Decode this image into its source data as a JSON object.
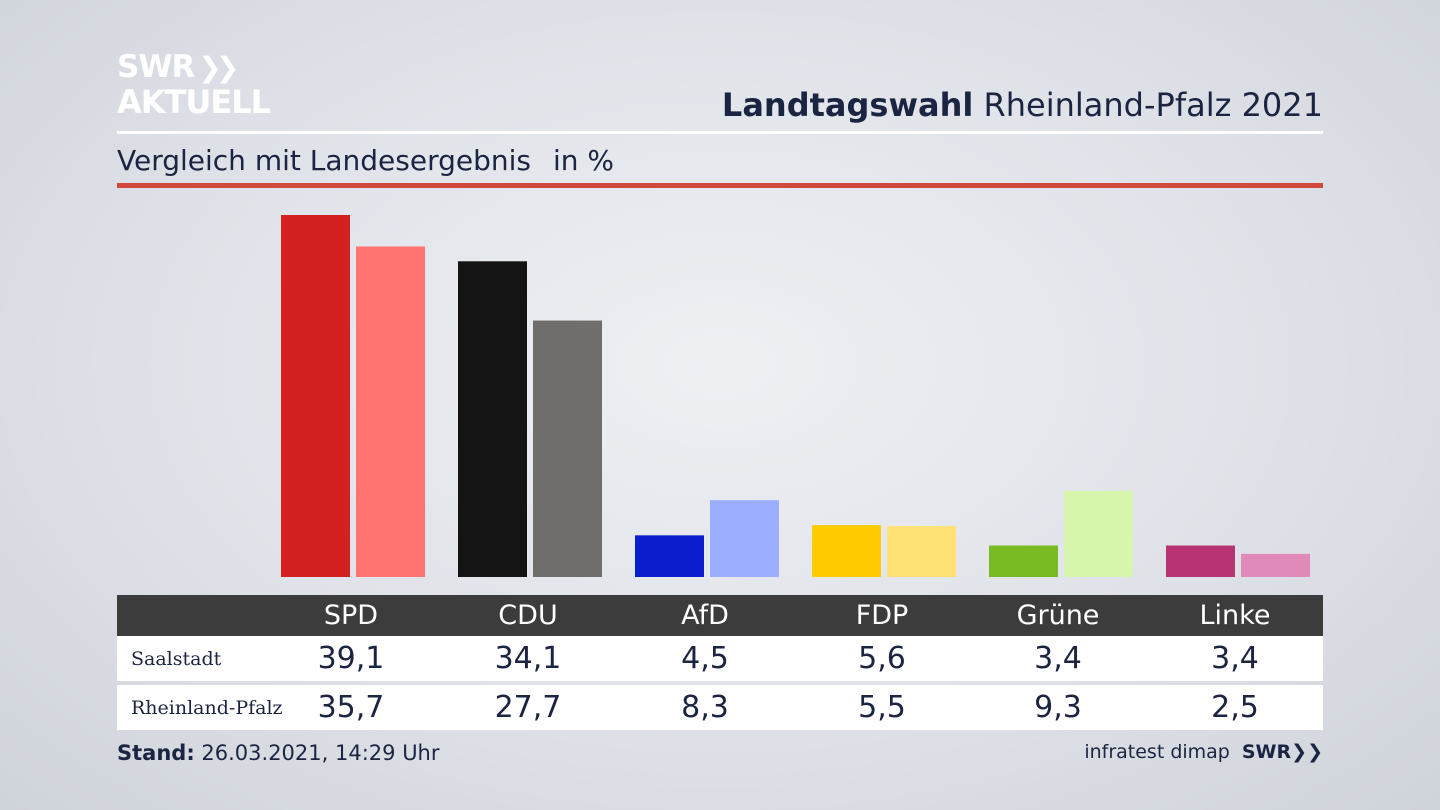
{
  "header": {
    "logo_line1": "SWR",
    "logo_line1_icon": "double-chevron",
    "logo_line2": "AKTUELL",
    "title_bold": "Landtagswahl",
    "title_rest": "Rheinland-Pfalz 2021",
    "subtitle": "Vergleich mit Landesergebnis",
    "unit": "in %"
  },
  "colors": {
    "accent_rule": "#cf4a3c",
    "table_header_bg": "#3c3c3c"
  },
  "chart_data": {
    "type": "bar",
    "categories": [
      "SPD",
      "CDU",
      "AfD",
      "FDP",
      "Grüne",
      "Linke"
    ],
    "series": [
      {
        "name": "Saalstadt",
        "values": [
          39.1,
          34.1,
          4.5,
          5.6,
          3.4,
          3.4
        ],
        "colors": [
          "#d42020",
          "#141414",
          "#0a1ecd",
          "#ffcc00",
          "#78bb22",
          "#b73372"
        ]
      },
      {
        "name": "Rheinland-Pfalz",
        "values": [
          35.7,
          27.7,
          8.3,
          5.5,
          9.3,
          2.5
        ],
        "colors": [
          "#ff7370",
          "#6f6e6c",
          "#9caeff",
          "#ffe176",
          "#d6f5ad",
          "#e08ab9"
        ]
      }
    ],
    "ylim": [
      0,
      39.1
    ],
    "grid": false,
    "legend": "table-below"
  },
  "table": {
    "headers": [
      "SPD",
      "CDU",
      "AfD",
      "FDP",
      "Grüne",
      "Linke"
    ],
    "rows": [
      {
        "label": "Saalstadt",
        "values": [
          "39,1",
          "34,1",
          "4,5",
          "5,6",
          "3,4",
          "3,4"
        ]
      },
      {
        "label": "Rheinland-Pfalz",
        "values": [
          "35,7",
          "27,7",
          "8,3",
          "5,5",
          "9,3",
          "2,5"
        ]
      }
    ]
  },
  "footer": {
    "stand_label": "Stand:",
    "stand_value": "26.03.2021, 14:29 Uhr",
    "source": "infratest dimap",
    "source_logo": "SWR"
  }
}
